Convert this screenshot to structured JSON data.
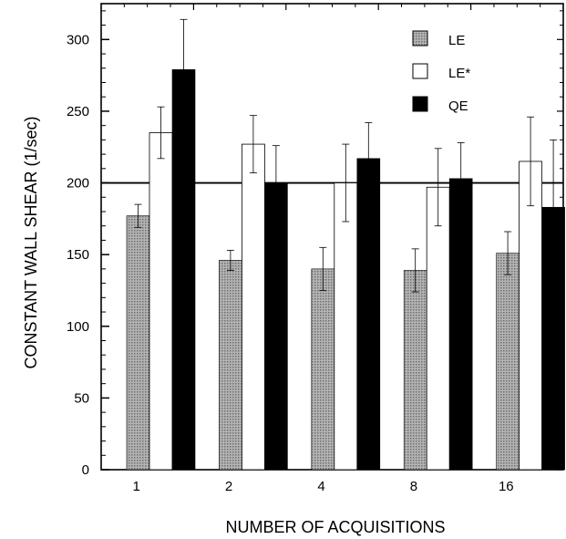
{
  "chart_data": {
    "type": "bar",
    "title": "",
    "xlabel": "NUMBER OF ACQUISITIONS",
    "ylabel": "CONSTANT WALL SHEAR (1/sec)",
    "ylim": [
      0,
      325
    ],
    "yticks": [
      0,
      50,
      100,
      150,
      200,
      250,
      300
    ],
    "categories": [
      "1",
      "2",
      "4",
      "8",
      "16"
    ],
    "reference_line": 200,
    "legend_position": "top-right",
    "grid": false,
    "series": [
      {
        "name": "LE",
        "color": "#9a9a9a",
        "fill": "dotted-gray",
        "values": [
          177,
          146,
          140,
          139,
          151
        ],
        "errors": [
          8,
          7,
          15,
          15,
          15
        ]
      },
      {
        "name": "LE*",
        "color": "#ffffff",
        "fill": "white",
        "values": [
          235,
          227,
          200,
          197,
          215
        ],
        "errors": [
          18,
          20,
          27,
          27,
          31
        ]
      },
      {
        "name": "QE",
        "color": "#000000",
        "fill": "black",
        "values": [
          279,
          200,
          217,
          203,
          183
        ],
        "errors": [
          35,
          26,
          25,
          25,
          47
        ]
      }
    ]
  }
}
